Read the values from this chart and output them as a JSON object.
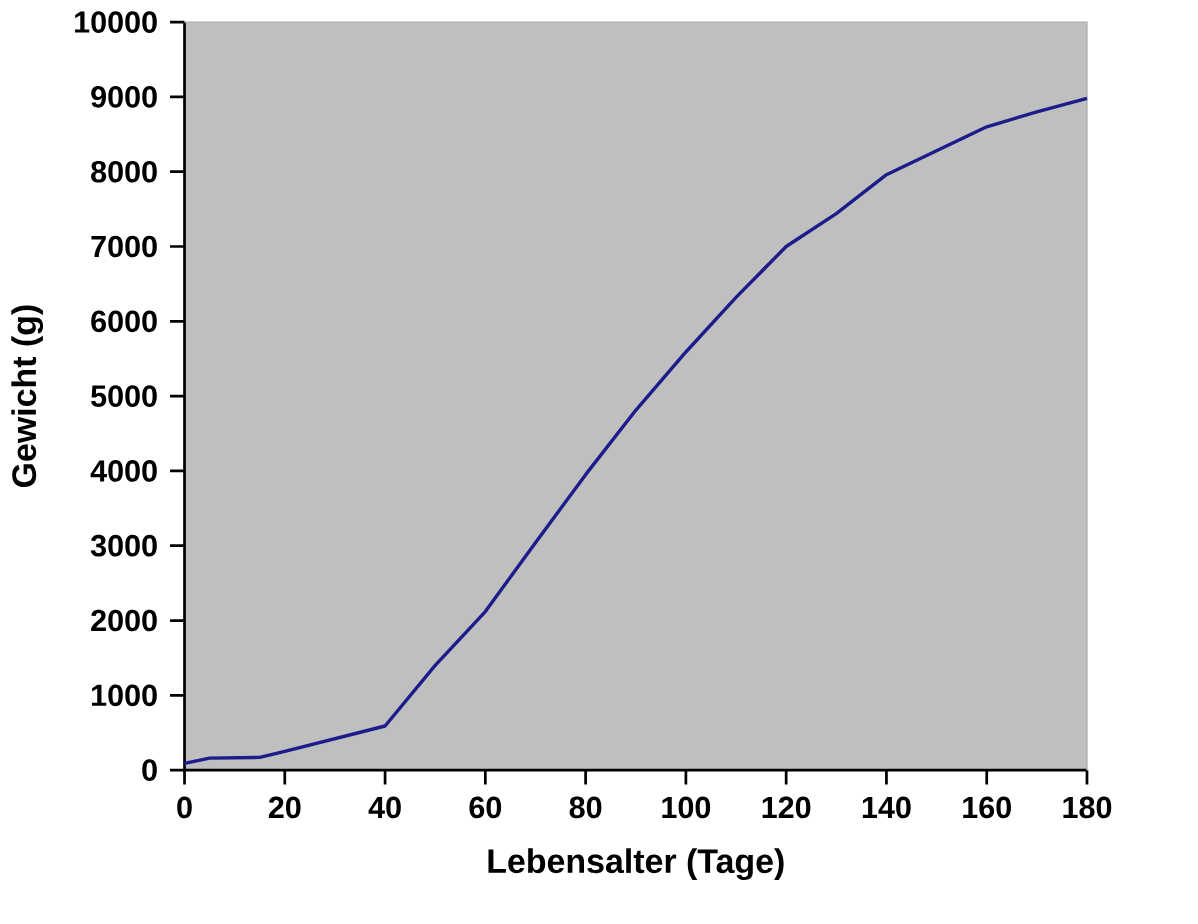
{
  "chart_data": {
    "type": "line",
    "xlabel": "Lebensalter (Tage)",
    "ylabel": "Gewicht (g)",
    "x": [
      0,
      5,
      15,
      20,
      40,
      50,
      60,
      70,
      80,
      90,
      100,
      110,
      120,
      130,
      140,
      150,
      160,
      170,
      180
    ],
    "series": [
      {
        "color": "#1c1c8c",
        "values": [
          90,
          160,
          170,
          250,
          590,
          1400,
          2120,
          3040,
          3950,
          4810,
          5590,
          6320,
          7000,
          7440,
          7960,
          8280,
          8600,
          8800,
          8980
        ]
      }
    ],
    "xlim": [
      0,
      180
    ],
    "xticks": [
      0,
      20,
      40,
      60,
      80,
      100,
      120,
      140,
      160,
      180
    ],
    "ylim": [
      0,
      10000
    ],
    "yticks": [
      0,
      1000,
      2000,
      3000,
      4000,
      5000,
      6000,
      7000,
      8000,
      9000,
      10000
    ],
    "marker": "none",
    "line_style": "solid"
  }
}
